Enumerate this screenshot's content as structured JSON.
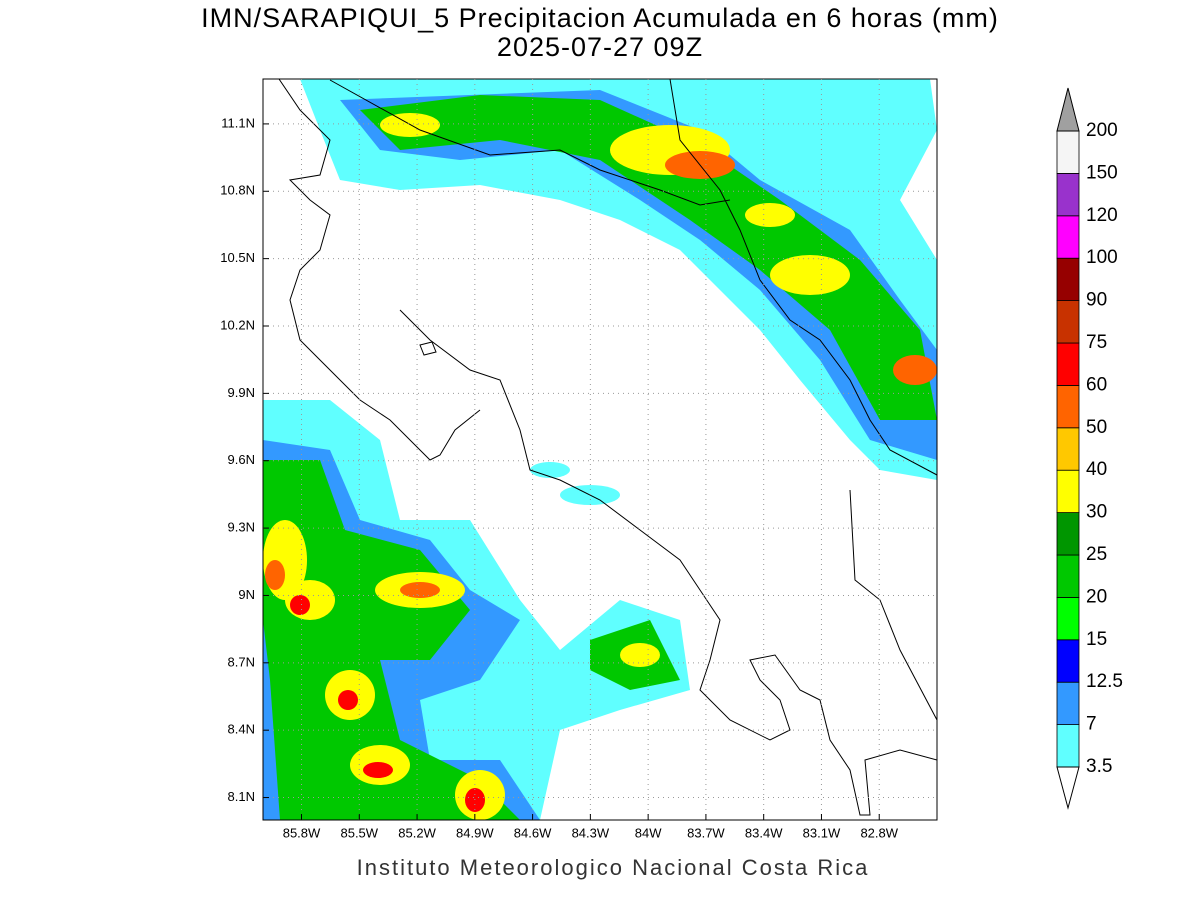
{
  "title": "IMN/SARAPIQUI_5 Precipitacion Acumulada en 6 horas (mm)",
  "subtitle": "2025-07-27 09Z",
  "footer": "Instituto Meteorologico Nacional Costa Rica",
  "map": {
    "xlim": [
      86.0,
      82.5
    ],
    "ylim": [
      8.0,
      11.3
    ],
    "grid": true,
    "xticks": [
      {
        "value": 85.8,
        "label": "85.8W"
      },
      {
        "value": 85.5,
        "label": "85.5W"
      },
      {
        "value": 85.2,
        "label": "85.2W"
      },
      {
        "value": 84.9,
        "label": "84.9W"
      },
      {
        "value": 84.6,
        "label": "84.6W"
      },
      {
        "value": 84.3,
        "label": "84.3W"
      },
      {
        "value": 84.0,
        "label": "84W"
      },
      {
        "value": 83.7,
        "label": "83.7W"
      },
      {
        "value": 83.4,
        "label": "83.4W"
      },
      {
        "value": 83.1,
        "label": "83.1W"
      },
      {
        "value": 82.8,
        "label": "82.8W"
      }
    ],
    "yticks": [
      {
        "value": 11.1,
        "label": "11.1N"
      },
      {
        "value": 10.8,
        "label": "10.8N"
      },
      {
        "value": 10.5,
        "label": "10.5N"
      },
      {
        "value": 10.2,
        "label": "10.2N"
      },
      {
        "value": 9.9,
        "label": "9.9N"
      },
      {
        "value": 9.6,
        "label": "9.6N"
      },
      {
        "value": 9.3,
        "label": "9.3N"
      },
      {
        "value": 9.0,
        "label": "9N"
      },
      {
        "value": 8.7,
        "label": "8.7N"
      },
      {
        "value": 8.4,
        "label": "8.4N"
      },
      {
        "value": 8.1,
        "label": "8.1N"
      }
    ]
  },
  "colorbar": {
    "levels": [
      3.5,
      7,
      12.5,
      15,
      20,
      25,
      30,
      40,
      50,
      60,
      75,
      90,
      100,
      120,
      150,
      200
    ],
    "colors": [
      "#60ffff",
      "#3399ff",
      "#0000ff",
      "#00ff00",
      "#00c800",
      "#009600",
      "#ffff00",
      "#ffc800",
      "#ff6400",
      "#ff0000",
      "#c83200",
      "#960000",
      "#ff00ff",
      "#9932cc",
      "#f5f5f5"
    ],
    "under_color": "#ffffff",
    "over_color": "#a0a0a0"
  }
}
